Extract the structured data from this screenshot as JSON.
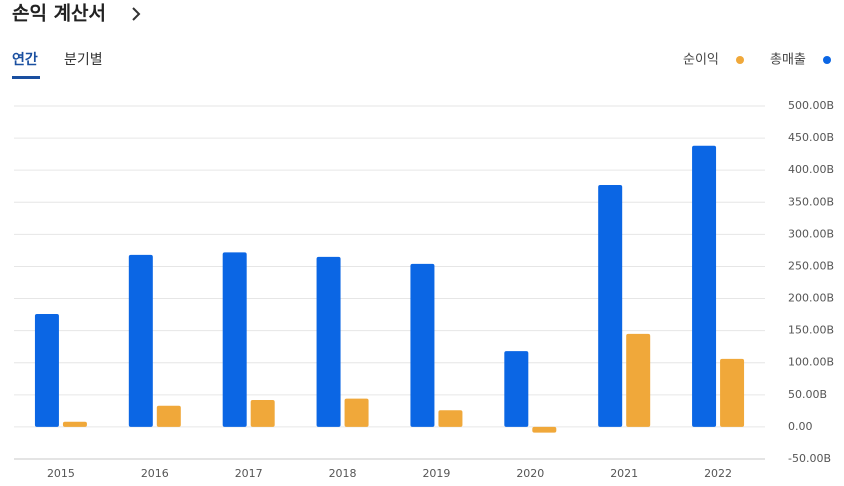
{
  "header": {
    "title": "손익 계산서",
    "tabs": [
      "연간",
      "분기별"
    ]
  },
  "chart_data": {
    "type": "bar",
    "categories": [
      "2015",
      "2016",
      "2017",
      "2018",
      "2019",
      "2020",
      "2021",
      "2022"
    ],
    "series": [
      {
        "name": "순이익",
        "color": "#f0a83a",
        "values": [
          8,
          33,
          42,
          44,
          26,
          -9,
          145,
          106
        ]
      },
      {
        "name": "총매출",
        "color": "#0b66e4",
        "values": [
          176,
          268,
          272,
          265,
          254,
          118,
          377,
          438
        ]
      }
    ],
    "ylim": [
      -50,
      500
    ],
    "yticks": [
      {
        "value": 500,
        "label": "500.00B"
      },
      {
        "value": 450,
        "label": "450.00B"
      },
      {
        "value": 400,
        "label": "400.00B"
      },
      {
        "value": 350,
        "label": "350.00B"
      },
      {
        "value": 300,
        "label": "300.00B"
      },
      {
        "value": 250,
        "label": "250.00B"
      },
      {
        "value": 200,
        "label": "200.00B"
      },
      {
        "value": 150,
        "label": "150.00B"
      },
      {
        "value": 100,
        "label": "100.00B"
      },
      {
        "value": 50,
        "label": "50.00B"
      },
      {
        "value": 0,
        "label": "0.00"
      },
      {
        "value": -50,
        "label": "-50.00B"
      }
    ],
    "grid": true,
    "legend": "top-right"
  }
}
